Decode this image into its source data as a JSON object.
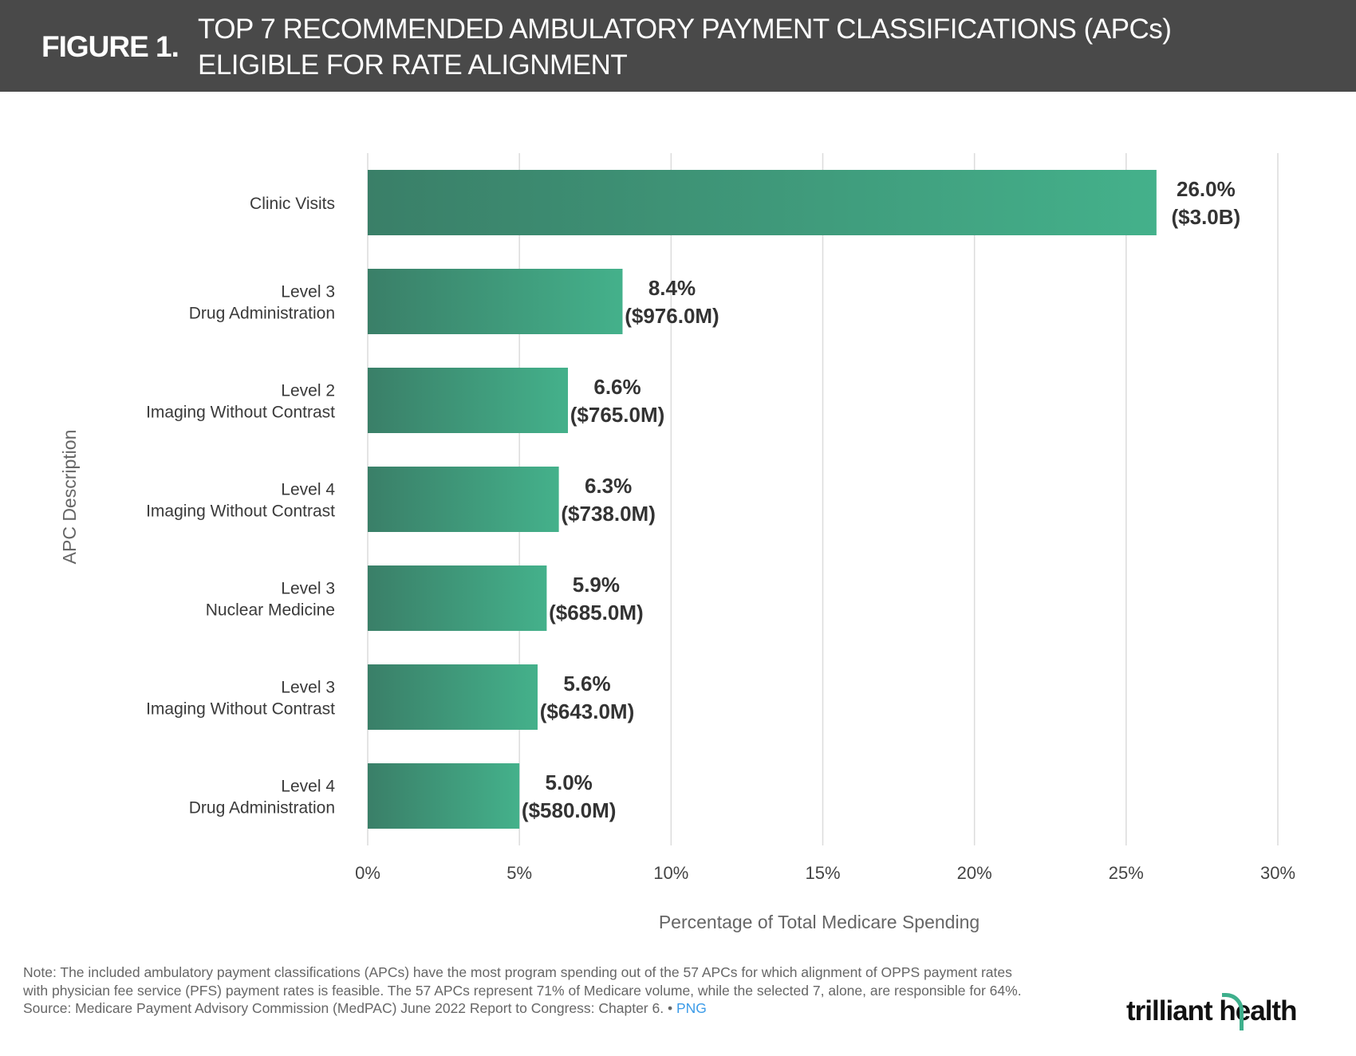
{
  "header": {
    "figure_label": "FIGURE 1.",
    "title_line1": "TOP 7 RECOMMENDED AMBULATORY PAYMENT CLASSIFICATIONS (APCs)",
    "title_line2": "ELIGIBLE FOR RATE ALIGNMENT"
  },
  "chart_data": {
    "type": "bar",
    "orientation": "horizontal",
    "categories": [
      [
        "Clinic Visits"
      ],
      [
        "Level 3",
        "Drug Administration"
      ],
      [
        "Level 2",
        "Imaging Without Contrast"
      ],
      [
        "Level 4",
        "Imaging Without Contrast"
      ],
      [
        "Level 3",
        "Nuclear Medicine"
      ],
      [
        "Level 3",
        "Imaging Without Contrast"
      ],
      [
        "Level 4",
        "Drug Administration"
      ]
    ],
    "values": [
      26.0,
      8.4,
      6.6,
      6.3,
      5.9,
      5.6,
      5.0
    ],
    "data_labels": [
      [
        "26.0%",
        "($3.0B)"
      ],
      [
        "8.4%",
        "($976.0M)"
      ],
      [
        "6.6%",
        "($765.0M)"
      ],
      [
        "6.3%",
        "($738.0M)"
      ],
      [
        "5.9%",
        "($685.0M)"
      ],
      [
        "5.6%",
        "($643.0M)"
      ],
      [
        "5.0%",
        "($580.0M)"
      ]
    ],
    "xlabel": "Percentage of Total Medicare Spending",
    "ylabel": "APC Description",
    "xlim": [
      0,
      30
    ],
    "xticks": [
      "0%",
      "5%",
      "10%",
      "15%",
      "20%",
      "25%",
      "30%"
    ],
    "grid": "vertical",
    "colors": {
      "bar_start": "#3a7f68",
      "bar_end": "#44b18b"
    }
  },
  "footer": {
    "note": "Note: The included ambulatory payment classifications (APCs)  have the most program spending out of the 57 APCs for which alignment of OPPS payment rates with physician fee service (PFS) payment rates is feasible. The 57 APCs represent 71% of Medicare volume, while the selected 7, alone, are responsible for 64%.",
    "source": "Source: Medicare Payment Advisory Commission (MedPAC) June 2022 Report to Congress: Chapter 6.",
    "separator": "•",
    "png_link": "PNG",
    "logo": "trilliant health"
  }
}
